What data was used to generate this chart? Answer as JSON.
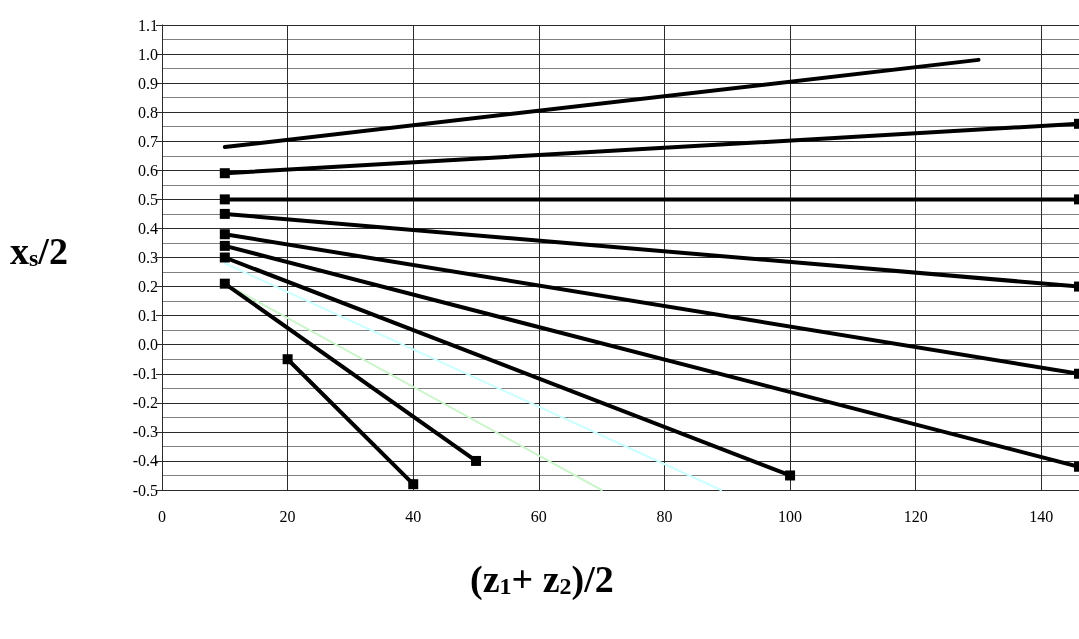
{
  "chart_data": {
    "type": "line",
    "xlabel": "(z$_{1}$+ z$_{2}$)/2",
    "ylabel": "x$_{s}$/2",
    "xlim": [
      0,
      146
    ],
    "xticks": [
      0,
      20,
      40,
      60,
      80,
      100,
      120,
      140
    ],
    "ylim": [
      -0.5,
      1.1
    ],
    "yticks": [
      -0.5,
      -0.4,
      -0.3,
      -0.2,
      -0.1,
      {
        "value": 0,
        "label": "0.0"
      },
      0.1,
      0.2,
      0.3,
      0.4,
      0.5,
      0.6,
      0.7,
      0.8,
      0.9,
      {
        "value": 1,
        "label": "1.0"
      },
      1.1
    ],
    "grid": true,
    "line_style": "solid",
    "series": [
      {
        "color": "#000000",
        "marker": "none",
        "x": [
          10,
          130
        ],
        "values": [
          0.68,
          0.98
        ]
      },
      {
        "color": "#000000",
        "marker": "square",
        "x": [
          10,
          146
        ],
        "values": [
          0.59,
          0.76
        ]
      },
      {
        "color": "#000000",
        "marker": "square",
        "x": [
          10,
          146
        ],
        "values": [
          0.5,
          0.5
        ]
      },
      {
        "color": "#000000",
        "marker": "square",
        "x": [
          10,
          146
        ],
        "values": [
          0.45,
          0.2
        ]
      },
      {
        "color": "#000000",
        "marker": "square",
        "x": [
          10,
          146
        ],
        "values": [
          0.38,
          -0.1
        ]
      },
      {
        "color": "#000000",
        "marker": "square",
        "x": [
          10,
          146
        ],
        "values": [
          0.34,
          -0.42
        ]
      },
      {
        "color": "#000000",
        "marker": "square",
        "x": [
          10,
          100
        ],
        "values": [
          0.3,
          -0.45
        ]
      },
      {
        "color": "#ccffff",
        "marker": "none",
        "x": [
          10,
          89
        ],
        "values": [
          0.28,
          -0.5
        ]
      },
      {
        "color": "#ccf5cc",
        "marker": "none",
        "x": [
          10,
          70
        ],
        "values": [
          0.21,
          -0.5
        ]
      },
      {
        "color": "#000000",
        "marker": "square",
        "x": [
          10,
          50
        ],
        "values": [
          0.21,
          -0.4
        ]
      },
      {
        "color": "#000000",
        "marker": "square",
        "x": [
          20,
          40
        ],
        "values": [
          -0.05,
          -0.48
        ]
      }
    ]
  }
}
